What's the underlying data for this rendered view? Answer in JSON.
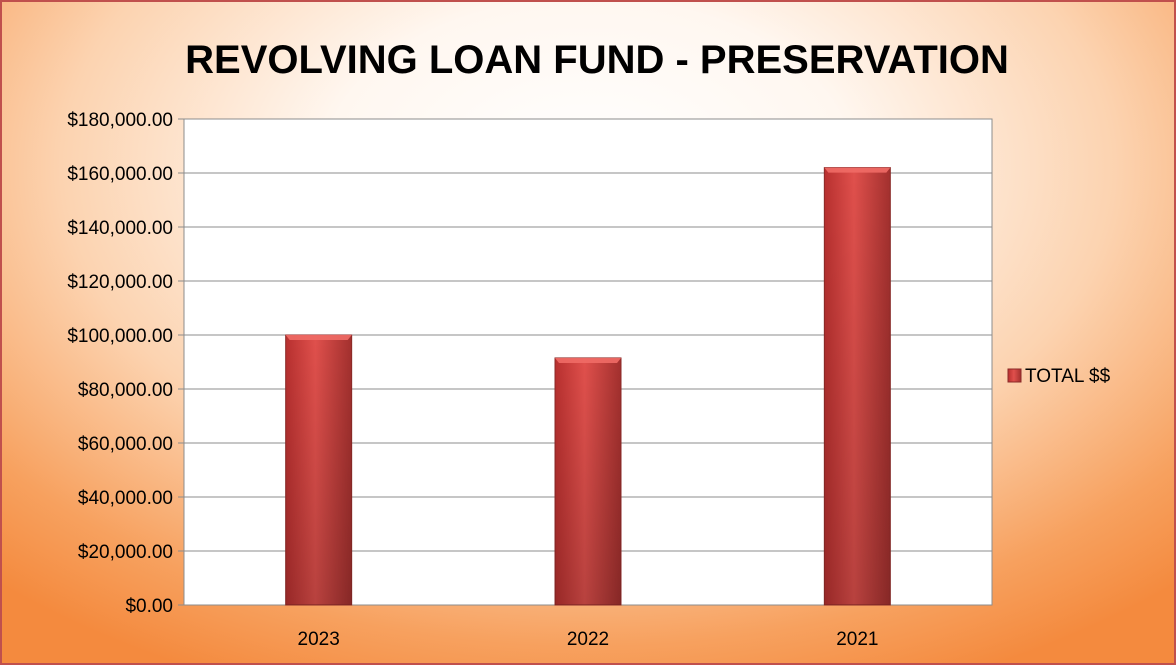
{
  "chart_data": {
    "type": "bar",
    "title": "REVOLVING LOAN FUND - PRESERVATION",
    "categories": [
      "2023",
      "2022",
      "2021"
    ],
    "series": [
      {
        "name": "TOTAL $$",
        "values": [
          100000,
          91500,
          162000
        ]
      }
    ],
    "ylim": [
      0,
      180000
    ],
    "yticks": [
      "$0.00",
      "$20,000.00",
      "$40,000.00",
      "$60,000.00",
      "$80,000.00",
      "$100,000.00",
      "$120,000.00",
      "$140,000.00",
      "$160,000.00",
      "$180,000.00"
    ],
    "xlabel": "",
    "ylabel": "",
    "grid": true,
    "legend_position": "right",
    "colors": {
      "bar": "#c0504d",
      "bar_light": "#e0504c",
      "bar_dark": "#9c2e2c",
      "frame_border": "#c0504d"
    }
  }
}
